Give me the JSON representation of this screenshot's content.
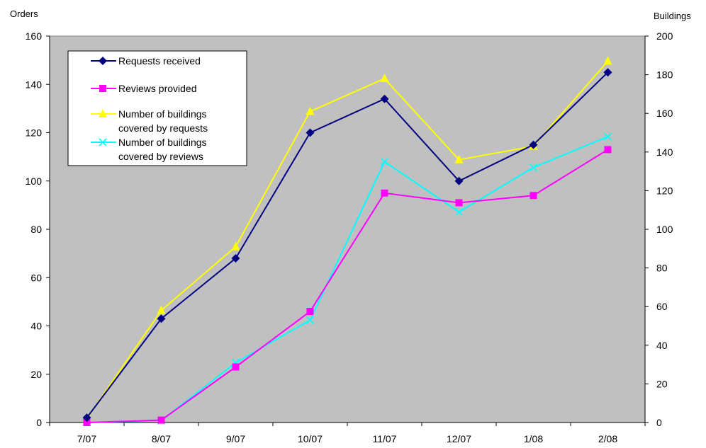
{
  "chart_data": {
    "type": "line",
    "categories": [
      "7/07",
      "8/07",
      "9/07",
      "10/07",
      "11/07",
      "12/07",
      "1/08",
      "2/08"
    ],
    "y_left": {
      "label": "Orders",
      "min": 0,
      "max": 160,
      "step": 20,
      "ticks": [
        "0",
        "20",
        "40",
        "60",
        "80",
        "100",
        "120",
        "140",
        "160"
      ]
    },
    "y_right": {
      "label": "Buildings",
      "min": 0,
      "max": 200,
      "step": 20,
      "ticks": [
        "0",
        "20",
        "40",
        "60",
        "80",
        "100",
        "120",
        "140",
        "160",
        "180",
        "200"
      ]
    },
    "plot_background": "#c0c0c0",
    "grid": false,
    "legend_position": "top-left",
    "series": [
      {
        "name": "Requests received",
        "axis": "left",
        "color": "#000080",
        "marker": "diamond",
        "values": [
          2,
          43,
          68,
          120,
          134,
          100,
          115,
          145
        ]
      },
      {
        "name": "Reviews provided",
        "axis": "left",
        "color": "#ff00ff",
        "marker": "square",
        "values": [
          0,
          1,
          23,
          46,
          95,
          91,
          94,
          113
        ]
      },
      {
        "name": "Number of buildings covered by requests",
        "axis": "right",
        "color": "#ffff00",
        "marker": "triangle",
        "legend_lines": [
          "Number of buildings",
          "covered by requests"
        ],
        "values": [
          2,
          58,
          91,
          161,
          178,
          136,
          143,
          187
        ]
      },
      {
        "name": "Number of buildings covered by reviews",
        "axis": "right",
        "color": "#00ffff",
        "marker": "x",
        "legend_lines": [
          "Number of buildings",
          "covered by reviews"
        ],
        "values": [
          0,
          1,
          31,
          53,
          135,
          109,
          132,
          148
        ]
      }
    ]
  }
}
